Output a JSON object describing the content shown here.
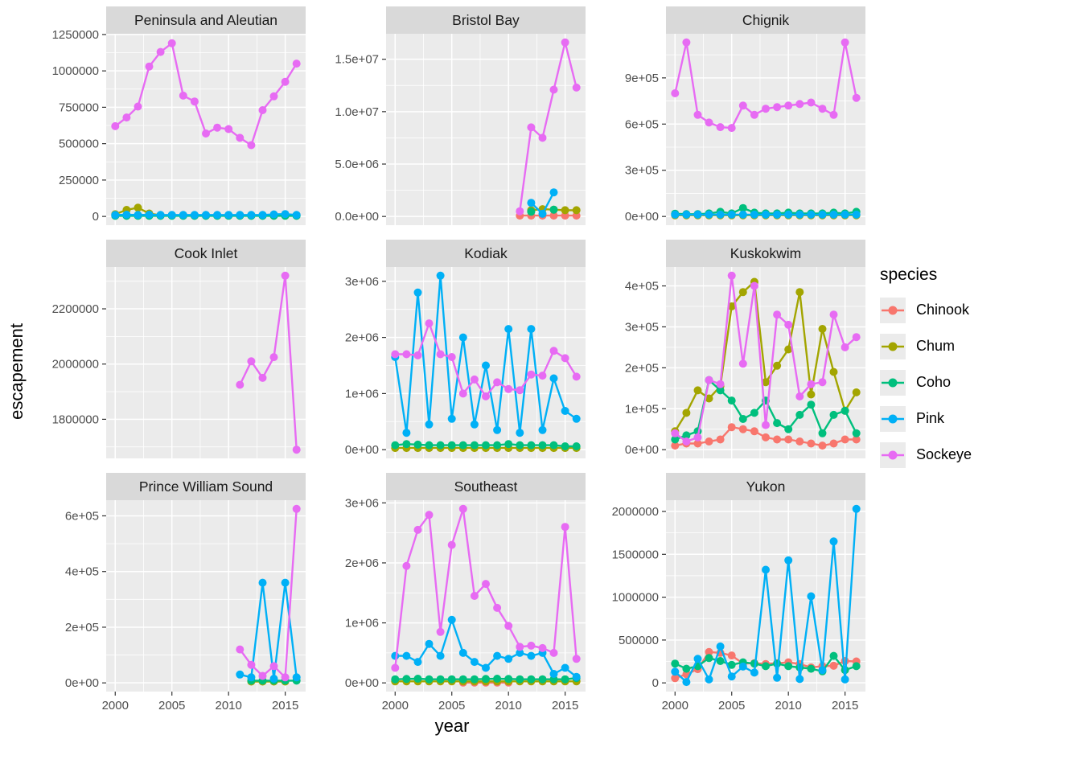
{
  "colors": {
    "panel_bg": "#EBEBEB",
    "strip_bg": "#D9D9D9",
    "grid": "#FFFFFF",
    "tick_text": "#4D4D4D",
    "tick_mark": "#333333",
    "strip_text": "#1A1A1A",
    "key_bg": "#EBEBEB"
  },
  "chart_data": {
    "type": "line",
    "title": "",
    "xlabel": "year",
    "ylabel": "escapement",
    "legend_title": "species",
    "legend_position": "right",
    "grid": true,
    "x": [
      2000,
      2001,
      2002,
      2003,
      2004,
      2005,
      2006,
      2007,
      2008,
      2009,
      2010,
      2011,
      2012,
      2013,
      2014,
      2015,
      2016
    ],
    "x_ticks": [
      2000,
      2005,
      2010,
      2015
    ],
    "xlim": [
      1999.2,
      2016.8
    ],
    "draw_order": [
      "Chinook",
      "Chum",
      "Coho",
      "Pink",
      "Sockeye"
    ],
    "species": [
      {
        "name": "Chinook",
        "color": "#F8766D"
      },
      {
        "name": "Chum",
        "color": "#A3A500"
      },
      {
        "name": "Coho",
        "color": "#00BF7D"
      },
      {
        "name": "Pink",
        "color": "#00B0F6"
      },
      {
        "name": "Sockeye",
        "color": "#E76BF3"
      }
    ],
    "panels": [
      {
        "title": "Peninsula and Aleutian",
        "ylim": [
          -60000,
          1255000
        ],
        "y_ticks": [
          {
            "v": 0,
            "label": "0"
          },
          {
            "v": 250000,
            "label": "250000"
          },
          {
            "v": 500000,
            "label": "500000"
          },
          {
            "v": 750000,
            "label": "750000"
          },
          {
            "v": 1000000,
            "label": "1000000"
          },
          {
            "v": 1250000,
            "label": "1250000"
          }
        ],
        "series": {
          "Chinook": null,
          "Chum": [
            15000,
            45000,
            60000,
            20000,
            8000,
            8000,
            8000,
            8000,
            8000,
            8000,
            8000,
            8000,
            8000,
            8000,
            8000,
            8000,
            8000
          ],
          "Coho": [
            4000,
            4000,
            4000,
            4000,
            4000,
            4000,
            4000,
            4000,
            4000,
            4000,
            4000,
            4000,
            4000,
            4000,
            4000,
            4000,
            4000
          ],
          "Pink": [
            10000,
            12000,
            10000,
            12000,
            10000,
            10000,
            10000,
            10000,
            10000,
            10000,
            10000,
            10000,
            10000,
            10000,
            14000,
            16000,
            10000
          ],
          "Sockeye": [
            620000,
            680000,
            755000,
            1030000,
            1130000,
            1190000,
            830000,
            790000,
            570000,
            610000,
            600000,
            540000,
            490000,
            730000,
            825000,
            925000,
            1050000
          ]
        }
      },
      {
        "title": "Bristol Bay",
        "ylim": [
          -830000,
          17430000
        ],
        "y_ticks": [
          {
            "v": 0,
            "label": "0.0e+00"
          },
          {
            "v": 5000000,
            "label": "5.0e+06"
          },
          {
            "v": 10000000,
            "label": "1.0e+07"
          },
          {
            "v": 15000000,
            "label": "1.5e+07"
          }
        ],
        "series": {
          "Chinook": [
            null,
            null,
            null,
            null,
            null,
            null,
            null,
            null,
            null,
            null,
            null,
            80000,
            80000,
            80000,
            80000,
            80000,
            80000
          ],
          "Chum": [
            null,
            null,
            null,
            null,
            null,
            null,
            null,
            null,
            null,
            null,
            null,
            null,
            600000,
            700000,
            650000,
            600000,
            600000
          ],
          "Coho": [
            null,
            null,
            null,
            null,
            null,
            null,
            null,
            null,
            null,
            null,
            null,
            null,
            450000,
            null,
            650000,
            null,
            null
          ],
          "Pink": [
            null,
            null,
            null,
            null,
            null,
            null,
            null,
            null,
            null,
            null,
            null,
            null,
            1300000,
            250000,
            2300000,
            null,
            null
          ],
          "Sockeye": [
            null,
            null,
            null,
            null,
            null,
            null,
            null,
            null,
            null,
            null,
            null,
            500000,
            8500000,
            7500000,
            12100000,
            16600000,
            12300000
          ]
        }
      },
      {
        "title": "Chignik",
        "ylim": [
          -56500,
          1186500
        ],
        "y_ticks": [
          {
            "v": 0,
            "label": "0e+00"
          },
          {
            "v": 300000,
            "label": "3e+05"
          },
          {
            "v": 600000,
            "label": "6e+05"
          },
          {
            "v": 900000,
            "label": "9e+05"
          }
        ],
        "series": {
          "Chinook": null,
          "Chum": [
            8000,
            8000,
            8000,
            8000,
            8000,
            8000,
            8000,
            8000,
            8000,
            8000,
            8000,
            8000,
            8000,
            8000,
            8000,
            8000,
            8000
          ],
          "Coho": [
            18000,
            15000,
            15000,
            20000,
            30000,
            20000,
            55000,
            25000,
            20000,
            20000,
            25000,
            20000,
            20000,
            20000,
            25000,
            20000,
            30000
          ],
          "Pink": [
            12000,
            12000,
            12000,
            12000,
            12000,
            12000,
            12000,
            12000,
            12000,
            12000,
            12000,
            12000,
            12000,
            12000,
            12000,
            12000,
            12000
          ],
          "Sockeye": [
            800000,
            1130000,
            660000,
            610000,
            580000,
            575000,
            720000,
            660000,
            700000,
            710000,
            720000,
            730000,
            740000,
            700000,
            660000,
            1130000,
            770000
          ]
        }
      },
      {
        "title": "Cook Inlet",
        "ylim": [
          1658500,
          2351500
        ],
        "y_ticks": [
          {
            "v": 1800000,
            "label": "1800000"
          },
          {
            "v": 2000000,
            "label": "2000000"
          },
          {
            "v": 2200000,
            "label": "2200000"
          }
        ],
        "series": {
          "Chinook": null,
          "Chum": null,
          "Coho": null,
          "Pink": null,
          "Sockeye": [
            null,
            null,
            null,
            null,
            null,
            null,
            null,
            null,
            null,
            null,
            null,
            1925000,
            2010000,
            1950000,
            2025000,
            2320000,
            1690000
          ]
        }
      },
      {
        "title": "Kodiak",
        "ylim": [
          -155000,
          3255000
        ],
        "y_ticks": [
          {
            "v": 0,
            "label": "0e+00"
          },
          {
            "v": 1000000,
            "label": "1e+06"
          },
          {
            "v": 2000000,
            "label": "2e+06"
          },
          {
            "v": 3000000,
            "label": "3e+06"
          }
        ],
        "series": {
          "Chinook": null,
          "Chum": [
            30000,
            30000,
            30000,
            30000,
            30000,
            30000,
            30000,
            30000,
            30000,
            30000,
            30000,
            30000,
            30000,
            30000,
            30000,
            30000,
            30000
          ],
          "Coho": [
            80000,
            100000,
            90000,
            80000,
            80000,
            80000,
            80000,
            80000,
            80000,
            80000,
            100000,
            80000,
            80000,
            80000,
            80000,
            60000,
            60000
          ],
          "Pink": [
            1650000,
            300000,
            2800000,
            450000,
            3100000,
            550000,
            2000000,
            450000,
            1500000,
            350000,
            2150000,
            300000,
            2150000,
            350000,
            1270000,
            690000,
            550000
          ],
          "Sockeye": [
            1700000,
            1700000,
            1680000,
            2250000,
            1700000,
            1650000,
            1000000,
            1250000,
            950000,
            1200000,
            1080000,
            1060000,
            1340000,
            1320000,
            1760000,
            1630000,
            1300000
          ]
        }
      },
      {
        "title": "Kuskokwim",
        "ylim": [
          -21250,
          446250
        ],
        "y_ticks": [
          {
            "v": 0,
            "label": "0e+00"
          },
          {
            "v": 100000,
            "label": "1e+05"
          },
          {
            "v": 200000,
            "label": "2e+05"
          },
          {
            "v": 300000,
            "label": "3e+05"
          },
          {
            "v": 400000,
            "label": "4e+05"
          }
        ],
        "series": {
          "Chinook": [
            10000,
            15000,
            15000,
            20000,
            25000,
            55000,
            50000,
            45000,
            30000,
            25000,
            25000,
            20000,
            15000,
            10000,
            15000,
            25000,
            25000
          ],
          "Chum": [
            45000,
            90000,
            145000,
            125000,
            155000,
            350000,
            385000,
            410000,
            165000,
            205000,
            245000,
            385000,
            135000,
            295000,
            190000,
            95000,
            140000
          ],
          "Coho": [
            25000,
            35000,
            45000,
            170000,
            145000,
            120000,
            75000,
            90000,
            120000,
            65000,
            50000,
            85000,
            110000,
            40000,
            85000,
            95000,
            40000
          ],
          "Pink": null,
          "Sockeye": [
            40000,
            20000,
            30000,
            170000,
            160000,
            425000,
            210000,
            400000,
            60000,
            330000,
            305000,
            130000,
            160000,
            165000,
            330000,
            250000,
            275000
          ]
        }
      },
      {
        "title": "Prince William Sound",
        "ylim": [
          -31250,
          656250
        ],
        "y_ticks": [
          {
            "v": 0,
            "label": "0e+00"
          },
          {
            "v": 200000,
            "label": "2e+05"
          },
          {
            "v": 400000,
            "label": "4e+05"
          },
          {
            "v": 600000,
            "label": "6e+05"
          }
        ],
        "series": {
          "Chinook": null,
          "Chum": [
            null,
            null,
            null,
            null,
            null,
            null,
            null,
            null,
            null,
            null,
            null,
            null,
            5000,
            5000,
            5000,
            5000,
            null
          ],
          "Coho": [
            null,
            null,
            null,
            null,
            null,
            null,
            null,
            null,
            null,
            null,
            null,
            null,
            8000,
            8000,
            8000,
            8000,
            8000
          ],
          "Pink": [
            null,
            null,
            null,
            null,
            null,
            null,
            null,
            null,
            null,
            null,
            null,
            30000,
            20000,
            360000,
            15000,
            360000,
            20000
          ],
          "Sockeye": [
            null,
            null,
            null,
            null,
            null,
            null,
            null,
            null,
            null,
            null,
            null,
            120000,
            65000,
            25000,
            60000,
            20000,
            625000
          ]
        }
      },
      {
        "title": "Southeast",
        "ylim": [
          -145000,
          3045000
        ],
        "y_ticks": [
          {
            "v": 0,
            "label": "0e+00"
          },
          {
            "v": 1000000,
            "label": "1e+06"
          },
          {
            "v": 2000000,
            "label": "2e+06"
          },
          {
            "v": 3000000,
            "label": "3e+06"
          }
        ],
        "series": {
          "Chinook": [
            null,
            null,
            null,
            null,
            null,
            null,
            5000,
            5000,
            5000,
            5000,
            5000,
            null,
            null,
            null,
            null,
            null,
            null
          ],
          "Chum": [
            25000,
            25000,
            25000,
            25000,
            25000,
            25000,
            25000,
            25000,
            25000,
            25000,
            25000,
            25000,
            25000,
            25000,
            25000,
            25000,
            25000
          ],
          "Coho": [
            60000,
            65000,
            70000,
            60000,
            60000,
            60000,
            60000,
            60000,
            65000,
            70000,
            65000,
            60000,
            60000,
            60000,
            60000,
            60000,
            80000
          ],
          "Pink": [
            450000,
            450000,
            350000,
            650000,
            450000,
            1050000,
            500000,
            350000,
            250000,
            450000,
            400000,
            500000,
            450000,
            500000,
            150000,
            250000,
            100000
          ],
          "Sockeye": [
            250000,
            1950000,
            2550000,
            2800000,
            850000,
            2300000,
            2900000,
            1450000,
            1650000,
            1250000,
            950000,
            600000,
            620000,
            580000,
            500000,
            2600000,
            400000
          ]
        }
      },
      {
        "title": "Yukon",
        "ylim": [
          -101500,
          2131500
        ],
        "y_ticks": [
          {
            "v": 0,
            "label": "0"
          },
          {
            "v": 500000,
            "label": "500000"
          },
          {
            "v": 1000000,
            "label": "1000000"
          },
          {
            "v": 1500000,
            "label": "1500000"
          },
          {
            "v": 2000000,
            "label": "2000000"
          }
        ],
        "series": {
          "Chinook": [
            55000,
            100000,
            160000,
            360000,
            350000,
            320000,
            225000,
            230000,
            220000,
            230000,
            240000,
            220000,
            180000,
            195000,
            200000,
            255000,
            250000
          ],
          "Chum": null,
          "Coho": [
            225000,
            165000,
            195000,
            290000,
            255000,
            210000,
            240000,
            225000,
            195000,
            225000,
            195000,
            180000,
            165000,
            135000,
            315000,
            150000,
            195000
          ],
          "Pink": [
            130000,
            10000,
            280000,
            40000,
            425000,
            75000,
            190000,
            120000,
            1320000,
            60000,
            1430000,
            45000,
            1010000,
            150000,
            1650000,
            40000,
            2030000
          ],
          "Sockeye": null
        }
      }
    ]
  }
}
